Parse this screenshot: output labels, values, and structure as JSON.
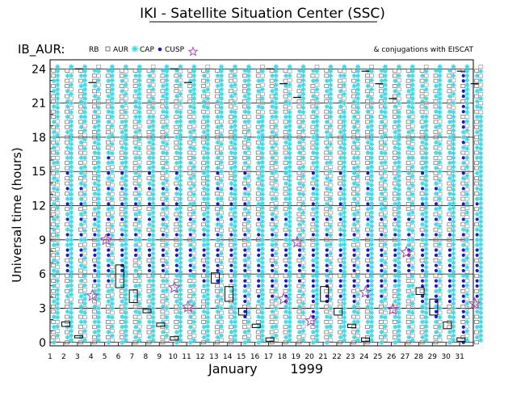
{
  "header": {
    "title": "IKI - Satellite Situation Center (SSC)",
    "satellite_label": "IB_AUR:",
    "legend_rb": "RB",
    "legend_aur": "AUR",
    "legend_cap": "CAP",
    "legend_cusp": "CUSP",
    "conjugations_note": "& conjugations with EISCAT"
  },
  "colors": {
    "rb": "#9a9a9a",
    "aur": "#6a6a6a",
    "cap": "#3fd9e6",
    "cusp": "#1a1acc",
    "conjugation_star": "#b24bb2",
    "grid": "#000000"
  },
  "chart_data": {
    "type": "scatter",
    "title": "IKI - Satellite Situation Center (SSC)",
    "xlabel": "January        1999",
    "ylabel": "Universal time (hours)",
    "x_ticks": [
      1,
      2,
      3,
      4,
      5,
      6,
      7,
      8,
      9,
      10,
      11,
      12,
      13,
      14,
      15,
      16,
      17,
      18,
      19,
      20,
      21,
      22,
      23,
      24,
      25,
      26,
      27,
      28,
      29,
      30,
      31
    ],
    "y_ticks": [
      0,
      3,
      6,
      9,
      12,
      15,
      18,
      21,
      24
    ],
    "xlim": [
      1,
      32
    ],
    "ylim": [
      -0.3,
      24.8
    ],
    "grid": "horizontal every 3 hours",
    "legend": "top-left",
    "series_note": "Each half-day column shows region coverage (RB, AUR, CAP, CUSP) along the satellite track; stars mark conjugations with EISCAT.",
    "cusp_intervals": [
      {
        "day": 2,
        "from": 6,
        "to": 15
      },
      {
        "day": 3,
        "from": 7,
        "to": 14
      },
      {
        "day": 4,
        "from": 5,
        "to": 12
      },
      {
        "day": 5,
        "from": 5,
        "to": 17
      },
      {
        "day": 6,
        "from": 6,
        "to": 16
      },
      {
        "day": 7,
        "from": 7,
        "to": 14
      },
      {
        "day": 8,
        "from": 6,
        "to": 15
      },
      {
        "day": 9,
        "from": 6,
        "to": 14
      },
      {
        "day": 10,
        "from": 6,
        "to": 15
      },
      {
        "day": 11,
        "from": 6,
        "to": 12
      },
      {
        "day": 12,
        "from": 5,
        "to": 12
      },
      {
        "day": 13,
        "from": 5,
        "to": 16
      },
      {
        "day": 14,
        "from": 5,
        "to": 14
      },
      {
        "day": 15,
        "from": 2,
        "to": 15
      },
      {
        "day": 16,
        "from": 4,
        "to": 12
      },
      {
        "day": 17,
        "from": 4,
        "to": 12
      },
      {
        "day": 18,
        "from": 3,
        "to": 11
      },
      {
        "day": 19,
        "from": 5,
        "to": 9
      },
      {
        "day": 20,
        "from": 2,
        "to": 15
      },
      {
        "day": 21,
        "from": 3,
        "to": 11
      },
      {
        "day": 22,
        "from": 4,
        "to": 15
      },
      {
        "day": 23,
        "from": 3,
        "to": 12
      },
      {
        "day": 24,
        "from": 4,
        "to": 15
      },
      {
        "day": 25,
        "from": 4,
        "to": 12
      },
      {
        "day": 26,
        "from": 5,
        "to": 11
      },
      {
        "day": 27,
        "from": 6,
        "to": 12
      },
      {
        "day": 28,
        "from": 3,
        "to": 15
      },
      {
        "day": 29,
        "from": 2,
        "to": 14
      },
      {
        "day": 30,
        "from": 3,
        "to": 12
      },
      {
        "day": 31,
        "from": 0,
        "to": 24
      },
      {
        "day": 32,
        "from": 4,
        "to": 13
      }
    ],
    "conjunction_boxes": [
      {
        "day": 2.15,
        "from": 1.4,
        "to": 1.8
      },
      {
        "day": 3.1,
        "from": 0.4,
        "to": 0.6
      },
      {
        "day": 6.1,
        "from": 4.8,
        "to": 6.8
      },
      {
        "day": 7.1,
        "from": 3.5,
        "to": 4.6
      },
      {
        "day": 8.1,
        "from": 2.6,
        "to": 2.9
      },
      {
        "day": 9.1,
        "from": 1.4,
        "to": 1.7
      },
      {
        "day": 10.1,
        "from": 0.2,
        "to": 0.5
      },
      {
        "day": 13.1,
        "from": 5.2,
        "to": 6.1
      },
      {
        "day": 14.1,
        "from": 3.6,
        "to": 4.9
      },
      {
        "day": 15.1,
        "from": 2.4,
        "to": 3.0
      },
      {
        "day": 16.1,
        "from": 1.3,
        "to": 1.6
      },
      {
        "day": 17.1,
        "from": 0.1,
        "to": 0.4
      },
      {
        "day": 21.1,
        "from": 3.6,
        "to": 4.9
      },
      {
        "day": 22.1,
        "from": 2.4,
        "to": 3.0
      },
      {
        "day": 23.1,
        "from": 1.3,
        "to": 1.6
      },
      {
        "day": 24.1,
        "from": 0.1,
        "to": 0.4
      },
      {
        "day": 28.1,
        "from": 4.2,
        "to": 4.8
      },
      {
        "day": 29.1,
        "from": 2.4,
        "to": 3.8
      },
      {
        "day": 30.1,
        "from": 1.2,
        "to": 1.8
      },
      {
        "day": 31.1,
        "from": 0.1,
        "to": 0.4
      }
    ],
    "top_markers": [
      {
        "day": 3.1,
        "hour": 24
      },
      {
        "day": 4.1,
        "hour": 22.8
      },
      {
        "day": 10.1,
        "hour": 24
      },
      {
        "day": 11.1,
        "hour": 22.8
      },
      {
        "day": 17.1,
        "hour": 24
      },
      {
        "day": 18.1,
        "hour": 22.7
      },
      {
        "day": 19.1,
        "hour": 21.5
      },
      {
        "day": 24.1,
        "hour": 23.8
      },
      {
        "day": 25.1,
        "hour": 22.7
      },
      {
        "day": 26.1,
        "hour": 21.4
      },
      {
        "day": 31.1,
        "hour": 23.8
      },
      {
        "day": 32.1,
        "hour": 22.7
      }
    ],
    "eiscat_conjugations": [
      {
        "day": 4.1,
        "hour": 4.1
      },
      {
        "day": 5.1,
        "hour": 9.0
      },
      {
        "day": 10.1,
        "hour": 4.8
      },
      {
        "day": 11.1,
        "hour": 3.1
      },
      {
        "day": 18.1,
        "hour": 3.8
      },
      {
        "day": 19.1,
        "hour": 8.8
      },
      {
        "day": 20.1,
        "hour": 1.9
      },
      {
        "day": 24.1,
        "hour": 4.4
      },
      {
        "day": 26.1,
        "hour": 2.9
      },
      {
        "day": 27.1,
        "hour": 7.9
      },
      {
        "day": 32.1,
        "hour": 3.4
      }
    ]
  }
}
